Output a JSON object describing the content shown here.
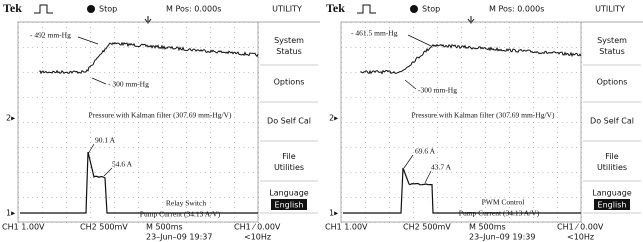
{
  "panels": [
    {
      "header": {
        "brand": "Tek",
        "state": "Stop",
        "position": "M Pos: 0.000s",
        "menu_title": "UTILITY"
      },
      "menu": [
        "System Status",
        "Options",
        "Do Self Cal",
        "File Utilities",
        "Language"
      ],
      "menu_highlight": "English",
      "screen": {
        "upper_high": "- 492 mm-Hg",
        "upper_low": "- 300 mm-Hg",
        "upper_caption": "Pressure with Kalman filter (307.69 mm-Hg/V)",
        "peak": "90.1 A",
        "hold": "54.6 A",
        "mode": "Relay Switch",
        "lower_caption": "Pump Current (34.13 A/V)",
        "ch2_marker": "2▸",
        "ch1_marker": "1▸"
      },
      "footer": {
        "ch1": "CH1  1.00V",
        "ch2": "CH2  500mV",
        "timebase": "M 500ms",
        "trigger": "CH1 ⁄ 0.00V",
        "date": "23–Jun–09 19:37",
        "freq": "<10Hz"
      }
    },
    {
      "header": {
        "brand": "Tek",
        "state": "Stop",
        "position": "M Pos: 0.000s",
        "menu_title": "UTILITY"
      },
      "menu": [
        "System Status",
        "Options",
        "Do Self Cal",
        "File Utilities",
        "Language"
      ],
      "menu_highlight": "English",
      "screen": {
        "upper_high": "- 461.5 mm-Hg",
        "upper_low": "-300 mm-Hg",
        "upper_caption": "Pressure with Kalman filter (307.69 mm-Hg/V)",
        "peak": "69.6 A",
        "hold": "43.7 A",
        "mode": "PWM Control",
        "lower_caption": "Pump Current (34.13 A/V)",
        "ch2_marker": "2▸",
        "ch1_marker": "1▸"
      },
      "footer": {
        "ch1": "CH1  1.00V",
        "ch2": "CH2  500mV",
        "timebase": "M 500ms",
        "trigger": "CH1 ⁄ 0.00V",
        "date": "23–Jun–09 19:39",
        "freq": "<10Hz"
      }
    }
  ]
}
